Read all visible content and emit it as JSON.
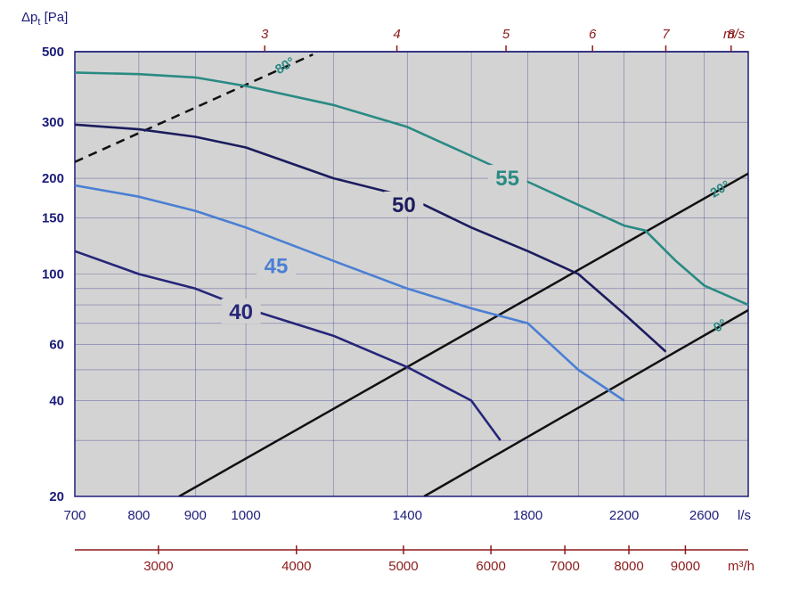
{
  "chart_data": {
    "type": "line",
    "y_axis": {
      "label_main": "Δp",
      "label_sub": "t",
      "label_unit": " [Pa]",
      "scale": "log",
      "ylim": [
        20,
        500
      ],
      "ticks": [
        20,
        40,
        60,
        100,
        150,
        200,
        300,
        500
      ],
      "minor_grid": [
        30,
        50,
        70,
        80,
        90
      ]
    },
    "x_axis": {
      "unit": "l/s",
      "scale": "log",
      "xlim": [
        700,
        2850
      ],
      "ticks": [
        700,
        800,
        900,
        1000,
        1400,
        1800,
        2200,
        2600
      ],
      "extra_grid": [
        1200,
        1600,
        2000,
        2400
      ]
    },
    "top_axis": {
      "unit": "m/s",
      "ticks": [
        {
          "label": "3",
          "x": 1040
        },
        {
          "label": "4",
          "x": 1370
        },
        {
          "label": "5",
          "x": 1720
        },
        {
          "label": "6",
          "x": 2060
        },
        {
          "label": "7",
          "x": 2400
        },
        {
          "label": "8",
          "x": 2750
        }
      ]
    },
    "m3h_axis": {
      "unit": "m³/h",
      "ticks": [
        3000,
        4000,
        5000,
        6000,
        7000,
        8000,
        9000
      ]
    },
    "series": [
      {
        "name": "55",
        "color": "#2a8a84",
        "points": [
          [
            700,
            430
          ],
          [
            800,
            425
          ],
          [
            900,
            415
          ],
          [
            1000,
            390
          ],
          [
            1200,
            340
          ],
          [
            1400,
            290
          ],
          [
            1600,
            235
          ],
          [
            1800,
            195
          ],
          [
            2000,
            165
          ],
          [
            2200,
            142
          ],
          [
            2300,
            137
          ],
          [
            2450,
            110
          ],
          [
            2600,
            92
          ],
          [
            2850,
            80
          ]
        ]
      },
      {
        "name": "50",
        "color": "#1c1c5e",
        "points": [
          [
            700,
            295
          ],
          [
            800,
            285
          ],
          [
            900,
            270
          ],
          [
            1000,
            250
          ],
          [
            1200,
            200
          ],
          [
            1400,
            175
          ],
          [
            1600,
            140
          ],
          [
            1800,
            118
          ],
          [
            2000,
            100
          ],
          [
            2200,
            75
          ],
          [
            2400,
            57
          ]
        ]
      },
      {
        "name": "45",
        "color": "#4a7fd4",
        "points": [
          [
            700,
            190
          ],
          [
            800,
            175
          ],
          [
            900,
            158
          ],
          [
            1000,
            140
          ],
          [
            1200,
            110
          ],
          [
            1400,
            90
          ],
          [
            1600,
            78
          ],
          [
            1800,
            70
          ],
          [
            2000,
            50
          ],
          [
            2200,
            40
          ]
        ]
      },
      {
        "name": "40",
        "color": "#26267a",
        "points": [
          [
            700,
            118
          ],
          [
            800,
            100
          ],
          [
            900,
            90
          ],
          [
            1000,
            78
          ],
          [
            1200,
            64
          ],
          [
            1400,
            51
          ],
          [
            1600,
            40
          ],
          [
            1700,
            30
          ]
        ]
      }
    ],
    "system_lines": [
      {
        "name": "80°",
        "dashed": true,
        "points": [
          [
            700,
            225
          ],
          [
            1150,
            490
          ]
        ]
      },
      {
        "name": "20°",
        "dashed": false,
        "points": [
          [
            870,
            20
          ],
          [
            2850,
            207
          ]
        ]
      },
      {
        "name": "0°",
        "dashed": false,
        "points": [
          [
            1450,
            20
          ],
          [
            2850,
            77
          ]
        ]
      }
    ]
  }
}
